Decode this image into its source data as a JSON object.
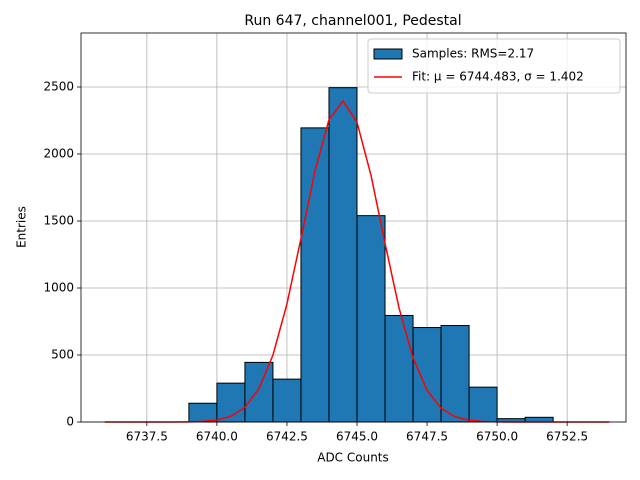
{
  "chart_data": {
    "type": "histogram",
    "title": "Run 647, channel001, Pedestal",
    "xlabel": "ADC Counts",
    "ylabel": "Entries",
    "xlim": [
      6735.15,
      6754.6
    ],
    "ylim": [
      0,
      2903
    ],
    "xticks": [
      6737.5,
      {
        "value": 6740,
        "label": "6740.0"
      },
      6742.5,
      {
        "value": 6745,
        "label": "6745.0"
      },
      6747.5,
      {
        "value": 6750,
        "label": "6750.0"
      },
      6752.5
    ],
    "yticks": [
      0,
      500,
      1000,
      1500,
      2000,
      2500
    ],
    "grid": true,
    "legend": "upper right",
    "series": [
      {
        "name": "Samples: RMS=2.17",
        "type": "histogram",
        "color": "#1f77b4",
        "edgecolor": "#000000",
        "bins": [
          6739,
          6740,
          6741,
          6742,
          6743,
          6744,
          6745,
          6746,
          6747,
          6748,
          6749,
          6750,
          6751,
          6752
        ],
        "values": [
          140,
          290,
          445,
          320,
          2195,
          2495,
          1540,
          795,
          705,
          720,
          260,
          25,
          35
        ]
      },
      {
        "name": "Fit: μ = 6744.483, σ = 1.402",
        "type": "line",
        "color": "#ff0000",
        "x": [
          6736,
          6736.5,
          6737,
          6737.5,
          6738,
          6738.5,
          6739,
          6739.5,
          6740,
          6740.5,
          6741,
          6741.5,
          6742,
          6742.5,
          6743,
          6743.5,
          6744,
          6744.5,
          6745,
          6745.5,
          6746,
          6746.5,
          6747,
          6747.5,
          6748,
          6748.5,
          6749,
          6749.5,
          6750,
          6750.5,
          6751,
          6751.5,
          6752,
          6752.5,
          6753,
          6753.5,
          6754
        ],
        "values": [
          0,
          0,
          0,
          0,
          0,
          0,
          1.1,
          4.3,
          14.4,
          42.3,
          109.4,
          249,
          499,
          881,
          1369,
          1873,
          2257,
          2395,
          2237,
          1841,
          1334,
          851,
          478,
          236,
          103,
          39.5,
          13.3,
          4,
          1,
          0,
          0,
          0,
          0,
          0,
          0,
          0,
          0
        ]
      }
    ]
  }
}
